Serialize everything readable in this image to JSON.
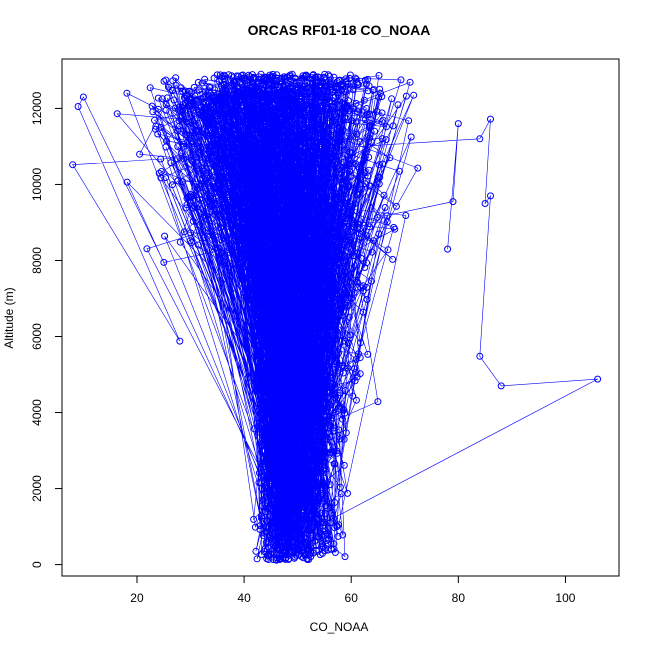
{
  "chart_data": {
    "type": "scatter",
    "title": "ORCAS RF01-18 CO_NOAA",
    "xlabel": "CO_NOAA",
    "ylabel": "Altitude (m)",
    "xlim": [
      6,
      110
    ],
    "ylim": [
      -300,
      13300
    ],
    "x_ticks": [
      20,
      40,
      60,
      80,
      100
    ],
    "y_ticks": [
      0,
      2000,
      4000,
      6000,
      8000,
      10000,
      12000
    ],
    "series_color": "#0000ff",
    "marker": "open-circle",
    "connected": true,
    "envelope": [
      {
        "alt": 100,
        "lo": 34,
        "hi": 62
      },
      {
        "alt": 500,
        "lo": 34,
        "hi": 62
      },
      {
        "alt": 1500,
        "lo": 35,
        "hi": 64
      },
      {
        "alt": 2500,
        "lo": 35,
        "hi": 66
      },
      {
        "alt": 3500,
        "lo": 35,
        "hi": 70
      },
      {
        "alt": 4500,
        "lo": 34,
        "hi": 78
      },
      {
        "alt": 5500,
        "lo": 33,
        "hi": 78
      },
      {
        "alt": 6500,
        "lo": 31,
        "hi": 72
      },
      {
        "alt": 7500,
        "lo": 25,
        "hi": 74
      },
      {
        "alt": 8500,
        "lo": 19,
        "hi": 76
      },
      {
        "alt": 9500,
        "lo": 15,
        "hi": 78
      },
      {
        "alt": 10500,
        "lo": 13,
        "hi": 78
      },
      {
        "alt": 11500,
        "lo": 11,
        "hi": 78
      },
      {
        "alt": 12000,
        "lo": 10,
        "hi": 78
      },
      {
        "alt": 12500,
        "lo": 14,
        "hi": 76
      },
      {
        "alt": 12900,
        "lo": 20,
        "hi": 74
      }
    ],
    "outliers": [
      {
        "x": 106,
        "y": 4880
      },
      {
        "x": 88,
        "y": 4700
      },
      {
        "x": 84,
        "y": 5480
      },
      {
        "x": 86,
        "y": 9700
      },
      {
        "x": 85,
        "y": 9500
      },
      {
        "x": 86,
        "y": 11720
      },
      {
        "x": 84,
        "y": 11200
      },
      {
        "x": 8,
        "y": 10520
      },
      {
        "x": 28,
        "y": 5880
      },
      {
        "x": 9,
        "y": 12050
      },
      {
        "x": 10,
        "y": 12300
      },
      {
        "x": 25,
        "y": 7950
      },
      {
        "x": 79,
        "y": 9550
      },
      {
        "x": 80,
        "y": 11600
      },
      {
        "x": 78,
        "y": 8300
      }
    ]
  }
}
